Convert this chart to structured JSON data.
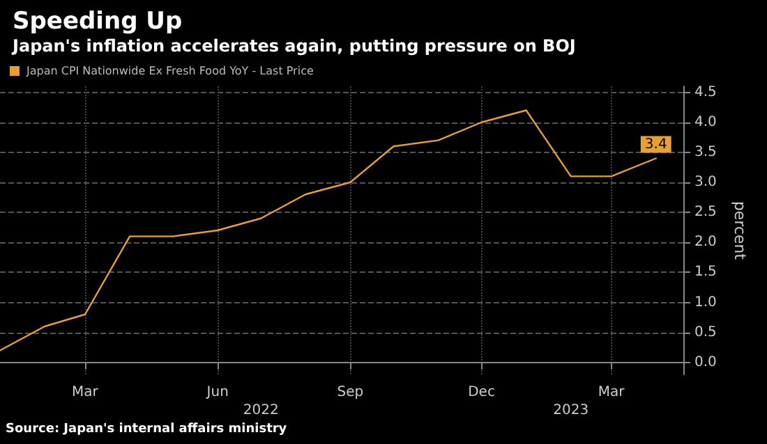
{
  "chart_data": {
    "type": "line",
    "title": "Speeding Up",
    "subtitle": "Japan's inflation accelerates again, putting pressure on BOJ",
    "ylabel": "percent",
    "x": [
      "2022-01",
      "2022-02",
      "2022-03",
      "2022-04",
      "2022-05",
      "2022-06",
      "2022-07",
      "2022-08",
      "2022-09",
      "2022-10",
      "2022-11",
      "2022-12",
      "2023-01",
      "2023-02",
      "2023-03",
      "2023-04"
    ],
    "series": [
      {
        "name": "Japan CPI Nationwide Ex Fresh Food YoY - Last Price",
        "color": "#e8a030",
        "values": [
          0.2,
          0.6,
          0.8,
          2.1,
          2.1,
          2.2,
          2.4,
          2.8,
          3.0,
          3.6,
          3.7,
          4.0,
          4.2,
          3.1,
          3.1,
          3.4
        ],
        "value_labels": [
          null,
          null,
          null,
          null,
          null,
          null,
          null,
          null,
          null,
          null,
          null,
          null,
          null,
          null,
          null,
          "3.4"
        ]
      }
    ],
    "xlim": [
      "2022-01",
      "2023-04-20"
    ],
    "xticks": [
      {
        "value": "2022-03",
        "label": "Mar"
      },
      {
        "value": "2022-06",
        "label": "Jun"
      },
      {
        "value": "2022-09",
        "label": "Sep"
      },
      {
        "value": "2022-12",
        "label": "Dec"
      },
      {
        "value": "2023-03",
        "label": "Mar"
      }
    ],
    "ylim": [
      -0.2,
      4.6
    ],
    "yticks": [
      {
        "value": 0,
        "label": "0.0"
      },
      {
        "value": 0.5,
        "label": "0.5"
      },
      {
        "value": 1,
        "label": "1.0"
      },
      {
        "value": 1.5,
        "label": "1.5"
      },
      {
        "value": 2,
        "label": "2.0"
      },
      {
        "value": 2.5,
        "label": "2.5"
      },
      {
        "value": 3,
        "label": "3.0"
      },
      {
        "value": 3.5,
        "label": "3.5"
      },
      {
        "value": 4,
        "label": "4.0"
      },
      {
        "value": 4.5,
        "label": "4.5"
      }
    ],
    "grid": true,
    "legend": "top left",
    "marker": "none",
    "line_style": "solid",
    "x2lim": [
      "2022-01",
      "2023-04-20"
    ],
    "x2ticks": [
      {
        "value": "2022-07",
        "label": "2022"
      },
      {
        "value": "2023-02",
        "label": "2023"
      }
    ],
    "annotations": [
      "Source: Japan's internal affairs ministry"
    ]
  }
}
